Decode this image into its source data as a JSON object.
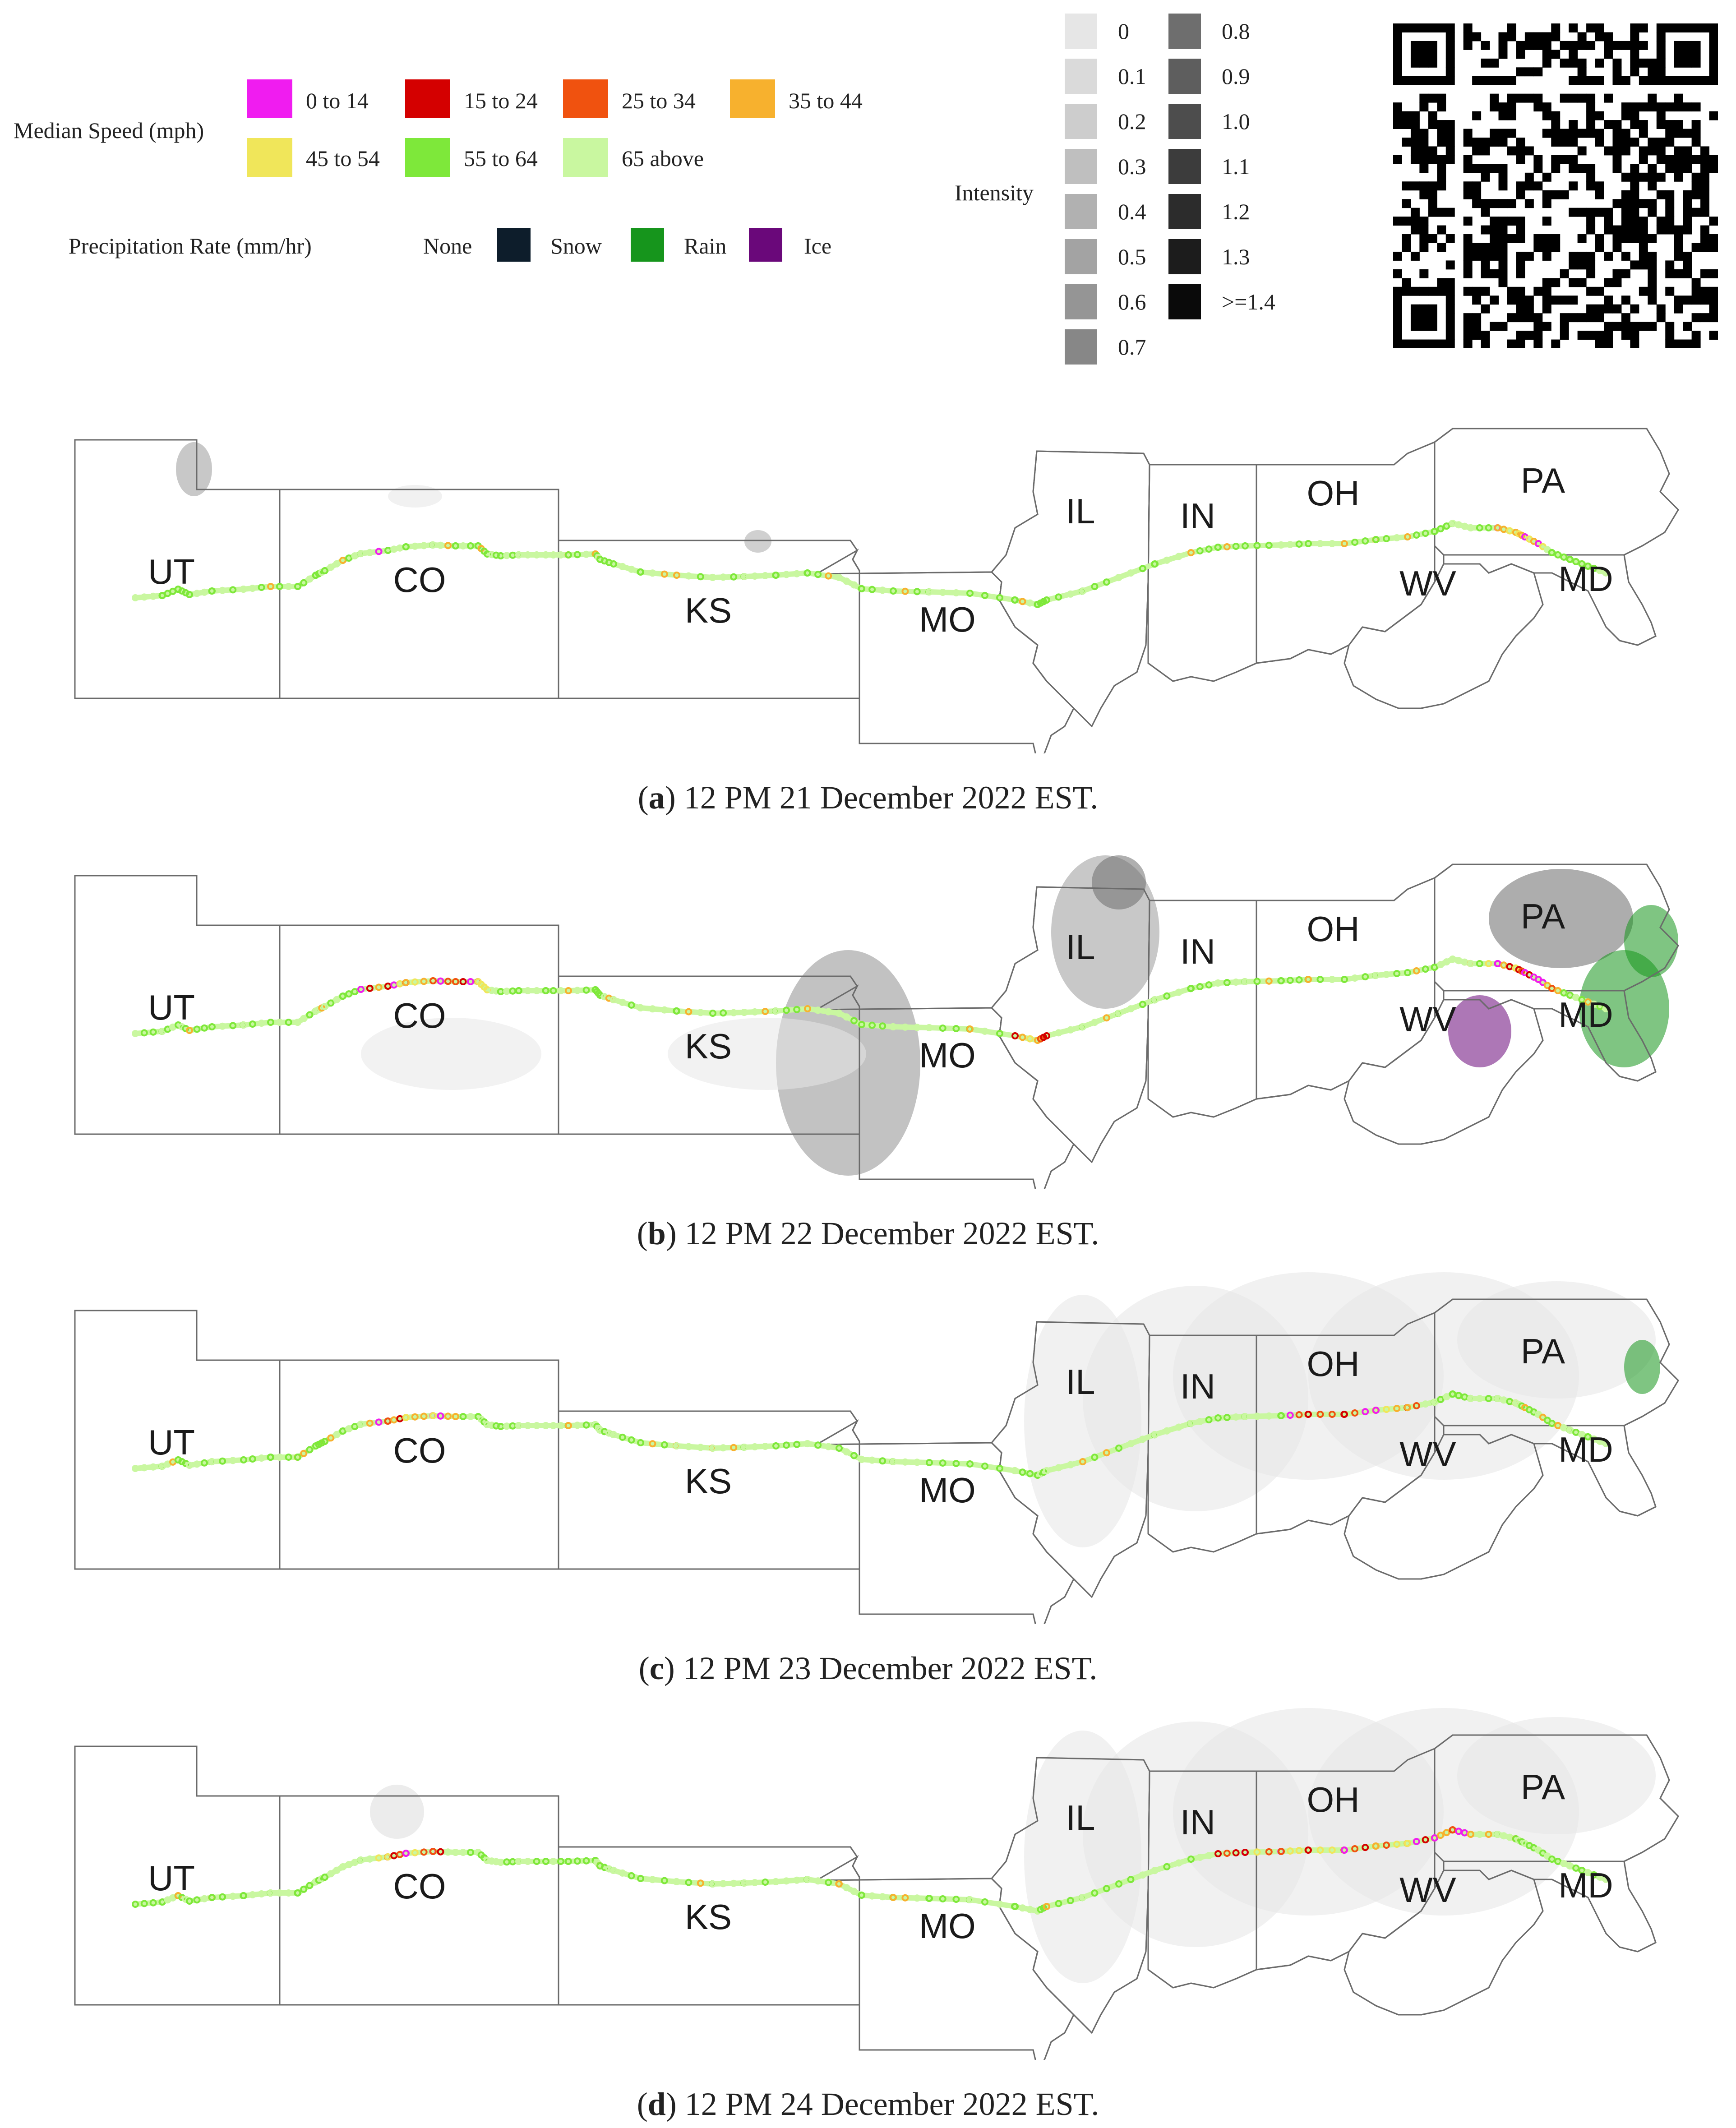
{
  "legend": {
    "median_speed": {
      "title": "Median Speed (mph)",
      "bins": [
        {
          "label": "0 to 14",
          "color": "#f01cf0"
        },
        {
          "label": "15 to 24",
          "color": "#d40000"
        },
        {
          "label": "25 to 34",
          "color": "#f0520f"
        },
        {
          "label": "35 to 44",
          "color": "#f7b12e"
        },
        {
          "label": "45 to 54",
          "color": "#f0e65a"
        },
        {
          "label": "55 to 64",
          "color": "#7ee83a"
        },
        {
          "label": "65 above",
          "color": "#c9f7a0"
        }
      ]
    },
    "precipitation": {
      "title": "Precipitation Rate (mm/hr)",
      "types": [
        {
          "label": "None",
          "color": ""
        },
        {
          "label": "Snow",
          "color": "#0d1d2b"
        },
        {
          "label": "Rain",
          "color": "#16951c"
        },
        {
          "label": "Ice",
          "color": "#6a087a"
        }
      ]
    },
    "intensity": {
      "title": "Intensity",
      "levels": [
        {
          "label": "0",
          "color": "#e6e6e6"
        },
        {
          "label": "0.1",
          "color": "#dadada"
        },
        {
          "label": "0.2",
          "color": "#cdcdcd"
        },
        {
          "label": "0.3",
          "color": "#bfbfbf"
        },
        {
          "label": "0.4",
          "color": "#b1b1b1"
        },
        {
          "label": "0.5",
          "color": "#a3a3a3"
        },
        {
          "label": "0.6",
          "color": "#959595"
        },
        {
          "label": "0.7",
          "color": "#878787"
        },
        {
          "label": "0.8",
          "color": "#6e6e6e"
        },
        {
          "label": "0.9",
          "color": "#5e5e5e"
        },
        {
          "label": "1.0",
          "color": "#4d4d4d"
        },
        {
          "label": "1.1",
          "color": "#3c3c3c"
        },
        {
          "label": "1.2",
          "color": "#2c2c2c"
        },
        {
          "label": "1.3",
          "color": "#1c1c1c"
        },
        {
          "label": ">=1.4",
          "color": "#0a0a0a"
        }
      ]
    }
  },
  "state_labels": [
    "UT",
    "CO",
    "KS",
    "MO",
    "IL",
    "IN",
    "OH",
    "WV",
    "PA",
    "MD"
  ],
  "panels": [
    {
      "letter": "a",
      "caption": " 12 PM 21 December 2022 EST."
    },
    {
      "letter": "b",
      "caption": " 12 PM 22 December 2022 EST."
    },
    {
      "letter": "c",
      "caption": " 12 PM 23 December 2022 EST."
    },
    {
      "letter": "d",
      "caption": " 12 PM 24 December 2022 EST."
    }
  ]
}
